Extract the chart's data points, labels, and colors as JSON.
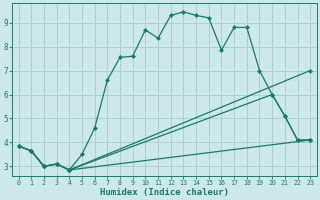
{
  "xlabel": "Humidex (Indice chaleur)",
  "background_color": "#cce8e8",
  "grid_color": "#aacccc",
  "line_color": "#1a7a6a",
  "xlim": [
    -0.5,
    23.5
  ],
  "ylim": [
    2.6,
    9.8
  ],
  "xticks": [
    0,
    1,
    2,
    3,
    4,
    5,
    6,
    7,
    8,
    9,
    10,
    11,
    12,
    13,
    14,
    15,
    16,
    17,
    18,
    19,
    20,
    21,
    22,
    23
  ],
  "yticks": [
    3,
    4,
    5,
    6,
    7,
    8,
    9
  ],
  "series1_x": [
    0,
    1,
    2,
    3,
    4,
    5,
    6,
    7,
    8,
    9,
    10,
    11,
    12,
    13,
    14,
    15,
    16,
    17,
    18,
    19,
    20,
    21,
    22,
    23
  ],
  "series1_y": [
    3.85,
    3.65,
    3.0,
    3.1,
    2.85,
    3.5,
    4.6,
    6.6,
    7.55,
    7.6,
    8.7,
    8.35,
    9.3,
    9.45,
    9.3,
    9.2,
    7.85,
    8.8,
    8.8,
    7.0,
    6.0,
    5.1,
    4.1,
    4.1
  ],
  "series2_x": [
    0,
    1,
    2,
    3,
    4,
    23
  ],
  "series2_y": [
    3.85,
    3.65,
    3.0,
    3.1,
    2.85,
    7.0
  ],
  "series3_x": [
    0,
    1,
    2,
    3,
    4,
    20,
    21,
    22,
    23
  ],
  "series3_y": [
    3.85,
    3.65,
    3.0,
    3.1,
    2.85,
    6.0,
    5.1,
    4.1,
    4.1
  ],
  "series4_x": [
    0,
    1,
    2,
    3,
    4,
    23
  ],
  "series4_y": [
    3.85,
    3.65,
    3.0,
    3.1,
    2.85,
    4.1
  ],
  "markersize": 2.5,
  "linewidth": 0.9
}
